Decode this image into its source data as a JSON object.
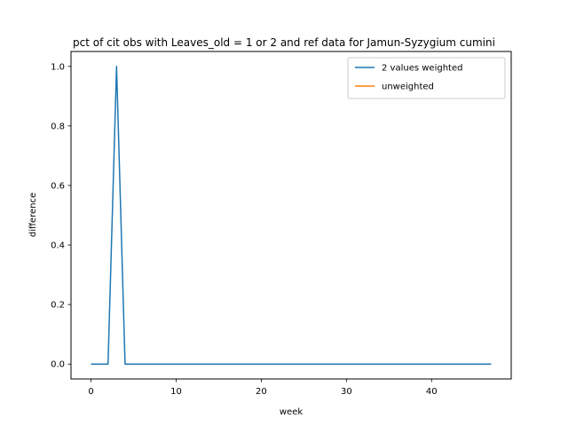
{
  "chart_data": {
    "type": "line",
    "title": "pct of cit obs with Leaves_old = 1 or 2 and ref data for Jamun-Syzygium cumini",
    "xlabel": "week",
    "ylabel": "difference",
    "xlim": [
      -2.35,
      49.35
    ],
    "ylim": [
      -0.05,
      1.05
    ],
    "xticks": [
      0,
      10,
      20,
      30,
      40
    ],
    "yticks": [
      0.0,
      0.2,
      0.4,
      0.6,
      0.8,
      1.0
    ],
    "xtick_labels": [
      "0",
      "10",
      "20",
      "30",
      "40"
    ],
    "ytick_labels": [
      "0.0",
      "0.2",
      "0.4",
      "0.6",
      "0.8",
      "1.0"
    ],
    "grid": false,
    "legend_position": "top-right",
    "series": [
      {
        "name": "2 values weighted",
        "color": "#1f77b4",
        "x": [
          0,
          1,
          2,
          3,
          4,
          5,
          6,
          7,
          8,
          9,
          10,
          11,
          12,
          13,
          14,
          15,
          16,
          17,
          18,
          19,
          20,
          21,
          22,
          23,
          24,
          25,
          26,
          27,
          28,
          29,
          30,
          31,
          32,
          33,
          34,
          35,
          36,
          37,
          38,
          39,
          40,
          41,
          42,
          43,
          44,
          45,
          46,
          47
        ],
        "y": [
          0,
          0,
          0,
          1,
          0,
          0,
          0,
          0,
          0,
          0,
          0,
          0,
          0,
          0,
          0,
          0,
          0,
          0,
          0,
          0,
          0,
          0,
          0,
          0,
          0,
          0,
          0,
          0,
          0,
          0,
          0,
          0,
          0,
          0,
          0,
          0,
          0,
          0,
          0,
          0,
          0,
          0,
          0,
          0,
          0,
          0,
          0,
          0
        ]
      },
      {
        "name": "unweighted",
        "color": "#ff7f0e",
        "x": [],
        "y": []
      }
    ]
  }
}
